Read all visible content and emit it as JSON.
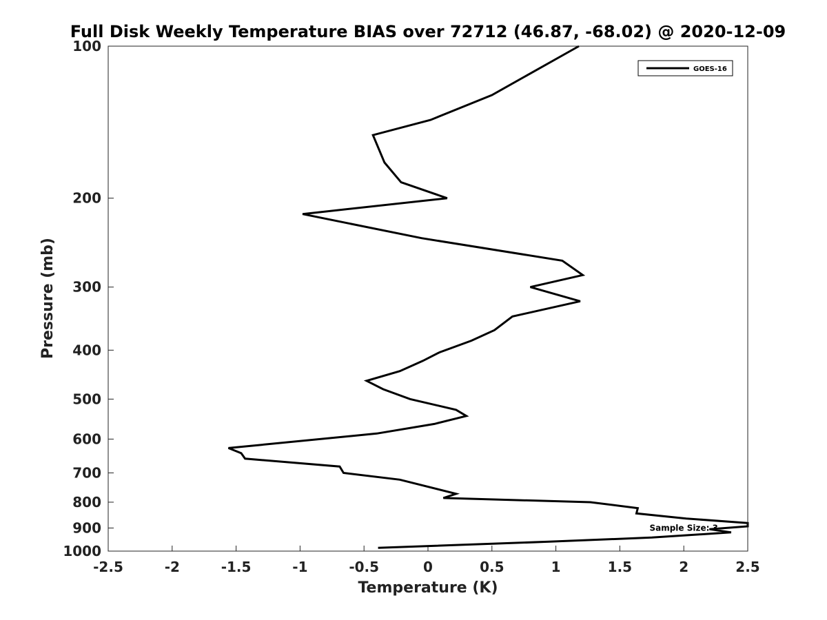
{
  "chart_data": {
    "type": "line",
    "title": "Full Disk Weekly Temperature BIAS over 72712 (46.87, -68.02) @ 2020-12-09",
    "xlabel": "Temperature (K)",
    "ylabel": "Pressure (mb)",
    "xlim": [
      -2.5,
      2.5
    ],
    "ylim": [
      1000,
      100
    ],
    "y_scale": "log",
    "x_ticks": [
      -2.5,
      -2,
      -1.5,
      -1,
      -0.5,
      0,
      0.5,
      1,
      1.5,
      2,
      2.5
    ],
    "x_tick_labels": [
      "-2.5",
      "-2",
      "-1.5",
      "-1",
      "-0.5",
      "0",
      "0.5",
      "1",
      "1.5",
      "2",
      "2.5"
    ],
    "y_ticks": [
      100,
      200,
      300,
      400,
      500,
      600,
      700,
      800,
      900,
      1000
    ],
    "y_tick_labels": [
      "100",
      "200",
      "300",
      "400",
      "500",
      "600",
      "700",
      "800",
      "900",
      "1000"
    ],
    "grid": false,
    "legend_position": "top-right",
    "series": [
      {
        "name": "GOES-16",
        "color": "#000000",
        "points": [
          {
            "x": 1.18,
            "p": 100
          },
          {
            "x": 0.5,
            "p": 125
          },
          {
            "x": 0.02,
            "p": 140
          },
          {
            "x": -0.43,
            "p": 150
          },
          {
            "x": -0.34,
            "p": 170
          },
          {
            "x": -0.21,
            "p": 186
          },
          {
            "x": 0.15,
            "p": 200
          },
          {
            "x": -0.98,
            "p": 215
          },
          {
            "x": -0.05,
            "p": 240
          },
          {
            "x": 1.05,
            "p": 266
          },
          {
            "x": 1.21,
            "p": 284
          },
          {
            "x": 0.8,
            "p": 300
          },
          {
            "x": 1.19,
            "p": 320
          },
          {
            "x": 0.66,
            "p": 343
          },
          {
            "x": 0.52,
            "p": 365
          },
          {
            "x": 0.34,
            "p": 383
          },
          {
            "x": 0.09,
            "p": 404
          },
          {
            "x": -0.04,
            "p": 420
          },
          {
            "x": -0.22,
            "p": 440
          },
          {
            "x": -0.48,
            "p": 460
          },
          {
            "x": -0.35,
            "p": 478
          },
          {
            "x": -0.14,
            "p": 500
          },
          {
            "x": 0.22,
            "p": 525
          },
          {
            "x": 0.3,
            "p": 540
          },
          {
            "x": 0.05,
            "p": 560
          },
          {
            "x": -0.4,
            "p": 585
          },
          {
            "x": -1.56,
            "p": 625
          },
          {
            "x": -1.46,
            "p": 640
          },
          {
            "x": -1.43,
            "p": 656
          },
          {
            "x": -0.69,
            "p": 680
          },
          {
            "x": -0.66,
            "p": 700
          },
          {
            "x": -0.22,
            "p": 722
          },
          {
            "x": 0.22,
            "p": 770
          },
          {
            "x": 0.12,
            "p": 785
          },
          {
            "x": 1.27,
            "p": 800
          },
          {
            "x": 1.64,
            "p": 822
          },
          {
            "x": 1.63,
            "p": 842
          },
          {
            "x": 2.02,
            "p": 862
          },
          {
            "x": 2.5,
            "p": 880
          },
          {
            "x": 2.5,
            "p": 893
          },
          {
            "x": 2.2,
            "p": 905
          },
          {
            "x": 2.37,
            "p": 918
          },
          {
            "x": 1.75,
            "p": 940
          },
          {
            "x": 0.95,
            "p": 958
          },
          {
            "x": -0.39,
            "p": 985
          }
        ]
      }
    ],
    "annotations": [
      {
        "text": "Sample Size: 3",
        "x": 2.0,
        "p": 912
      }
    ]
  }
}
